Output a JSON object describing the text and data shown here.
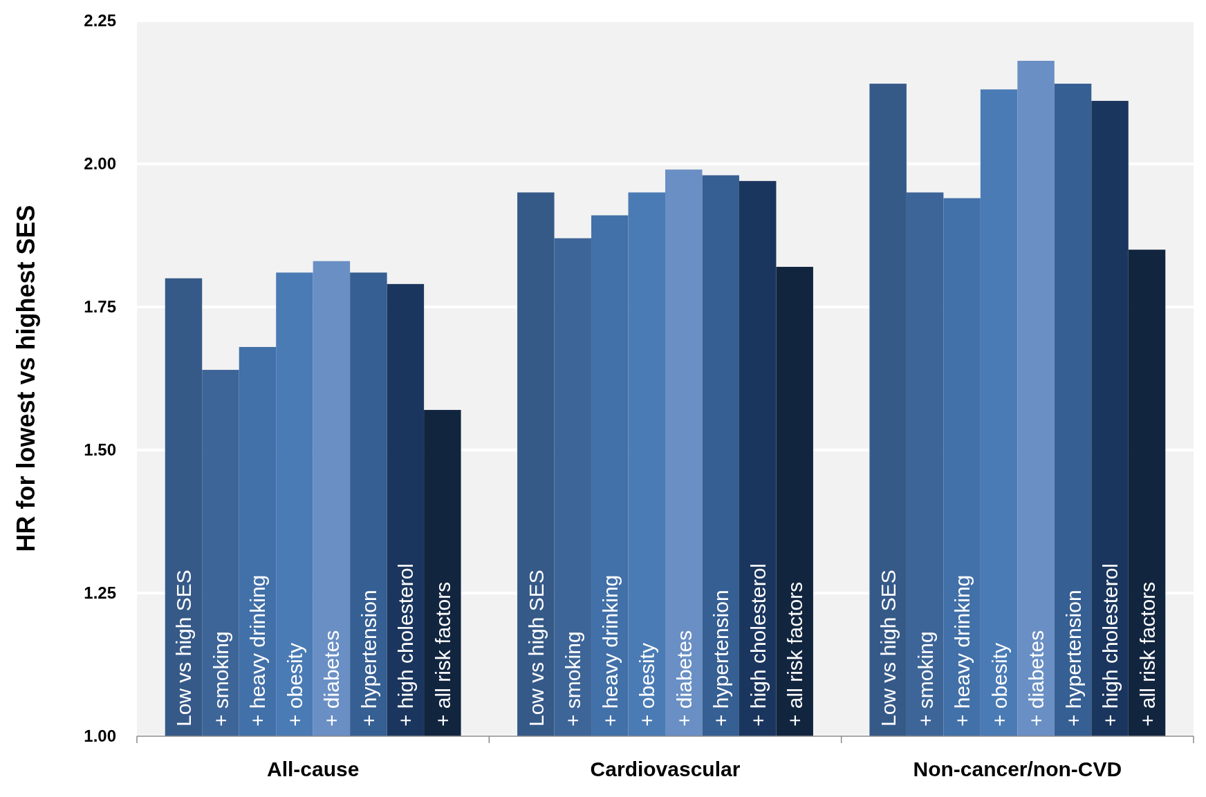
{
  "chart_data": {
    "type": "bar",
    "ylabel": "HR for lowest vs highest SES",
    "categories": [
      "All-cause",
      "Cardiovascular",
      "Non-cancer/non-CVD"
    ],
    "series": [
      {
        "name": "Low vs high SES",
        "color": "#365a88",
        "values": [
          1.8,
          1.95,
          2.14
        ]
      },
      {
        "name": "+ smoking",
        "color": "#3e6598",
        "values": [
          1.64,
          1.87,
          1.95
        ]
      },
      {
        "name": "+ heavy drinking",
        "color": "#4270a8",
        "values": [
          1.68,
          1.91,
          1.94
        ]
      },
      {
        "name": "+ obesity",
        "color": "#4a7bb5",
        "values": [
          1.81,
          1.95,
          2.13
        ]
      },
      {
        "name": "+ diabetes",
        "color": "#6a8fc4",
        "values": [
          1.83,
          1.99,
          2.18
        ]
      },
      {
        "name": "+ hypertension",
        "color": "#365f93",
        "values": [
          1.81,
          1.98,
          2.14
        ]
      },
      {
        "name": "+ high cholesterol",
        "color": "#1b365e",
        "values": [
          1.79,
          1.97,
          2.11
        ]
      },
      {
        "name": "+ all risk factors",
        "color": "#12253f",
        "values": [
          1.57,
          1.82,
          1.85
        ]
      }
    ],
    "ylim": [
      1,
      2.25
    ],
    "yticks": [
      {
        "value": 1,
        "label": "1.00"
      },
      {
        "value": 1.25,
        "label": "1.25"
      },
      {
        "value": 1.5,
        "label": "1.50"
      },
      {
        "value": 1.75,
        "label": "1.75"
      },
      {
        "value": 2,
        "label": "2.00"
      },
      {
        "value": 2.25,
        "label": "2.25"
      }
    ],
    "grid": "y"
  }
}
